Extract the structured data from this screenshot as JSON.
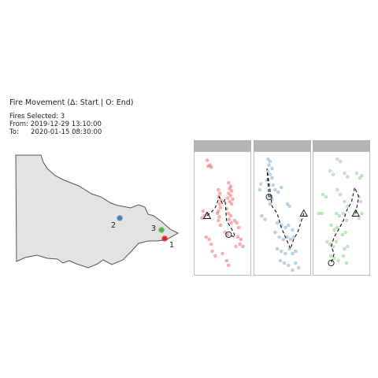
{
  "header": {
    "title": "Fire Movement (Δ: Start | O: End)",
    "selected": "Fires Selected: 3",
    "from": "From: 2019-12-29 13:10:00",
    "to_label": "To:",
    "to_value": "2020-01-15 08:30:00"
  },
  "colors": {
    "fire_1": "#e41a1c",
    "fire_2": "#377eb8",
    "fire_3": "#4daf4a",
    "map_fill": "#e3e3e3",
    "map_stroke": "#555555",
    "strip": "#b3b3b3"
  },
  "chart_data": [
    {
      "type": "scatter",
      "description_of_view": "map",
      "title": "",
      "fires": [
        {
          "label": "1",
          "color": "#e41a1c",
          "location": "far east, near coast"
        },
        {
          "label": "2",
          "color": "#377eb8",
          "location": "north-east"
        },
        {
          "label": "3",
          "color": "#4daf4a",
          "location": "far east"
        }
      ]
    },
    {
      "type": "scatter",
      "title": "",
      "xlabel": "",
      "ylabel": "",
      "grid": false,
      "facets": [
        {
          "fire": "1",
          "color": "#e41a1c",
          "points": [
            [
              0.2,
              0.05
            ],
            [
              0.26,
              0.09
            ],
            [
              0.22,
              0.1
            ],
            [
              0.28,
              0.11
            ],
            [
              0.62,
              0.24
            ],
            [
              0.66,
              0.27
            ],
            [
              0.64,
              0.29
            ],
            [
              0.68,
              0.31
            ],
            [
              0.62,
              0.33
            ],
            [
              0.66,
              0.35
            ],
            [
              0.6,
              0.37
            ],
            [
              0.7,
              0.38
            ],
            [
              0.64,
              0.4
            ],
            [
              0.68,
              0.42
            ],
            [
              0.42,
              0.3
            ],
            [
              0.45,
              0.33
            ],
            [
              0.43,
              0.36
            ],
            [
              0.47,
              0.39
            ],
            [
              0.44,
              0.42
            ],
            [
              0.46,
              0.45
            ],
            [
              0.42,
              0.48
            ],
            [
              0.12,
              0.48
            ],
            [
              0.2,
              0.5
            ],
            [
              0.15,
              0.52
            ],
            [
              0.1,
              0.54
            ],
            [
              0.58,
              0.46
            ],
            [
              0.62,
              0.5
            ],
            [
              0.66,
              0.52
            ],
            [
              0.63,
              0.55
            ],
            [
              0.67,
              0.58
            ],
            [
              0.4,
              0.5
            ],
            [
              0.44,
              0.53
            ],
            [
              0.42,
              0.56
            ],
            [
              0.46,
              0.6
            ],
            [
              0.74,
              0.56
            ],
            [
              0.78,
              0.58
            ],
            [
              0.82,
              0.62
            ],
            [
              0.55,
              0.66
            ],
            [
              0.6,
              0.68
            ],
            [
              0.8,
              0.7
            ],
            [
              0.86,
              0.72
            ],
            [
              0.84,
              0.76
            ],
            [
              0.9,
              0.78
            ],
            [
              0.76,
              0.78
            ],
            [
              0.18,
              0.7
            ],
            [
              0.24,
              0.72
            ],
            [
              0.28,
              0.76
            ],
            [
              0.3,
              0.82
            ],
            [
              0.36,
              0.86
            ],
            [
              0.5,
              0.84
            ],
            [
              0.58,
              0.9
            ],
            [
              0.62,
              0.94
            ]
          ],
          "path": [
            [
              0.2,
              0.52
            ],
            [
              0.35,
              0.46
            ],
            [
              0.44,
              0.36
            ],
            [
              0.5,
              0.42
            ],
            [
              0.55,
              0.38
            ],
            [
              0.58,
              0.56
            ],
            [
              0.66,
              0.62
            ],
            [
              0.72,
              0.66
            ],
            [
              0.74,
              0.7
            ],
            [
              0.62,
              0.68
            ]
          ],
          "start": [
            0.2,
            0.52
          ],
          "end": [
            0.62,
            0.68
          ]
        },
        {
          "fire": "2",
          "color": "#377eb8",
          "points": [
            [
              0.22,
              0.04
            ],
            [
              0.26,
              0.06
            ],
            [
              0.24,
              0.09
            ],
            [
              0.3,
              0.12
            ],
            [
              0.22,
              0.14
            ],
            [
              0.26,
              0.17
            ],
            [
              0.2,
              0.22
            ],
            [
              0.3,
              0.2
            ],
            [
              0.08,
              0.25
            ],
            [
              0.06,
              0.3
            ],
            [
              0.32,
              0.26
            ],
            [
              0.36,
              0.3
            ],
            [
              0.42,
              0.32
            ],
            [
              0.48,
              0.28
            ],
            [
              0.24,
              0.36
            ],
            [
              0.3,
              0.38
            ],
            [
              0.26,
              0.42
            ],
            [
              0.6,
              0.42
            ],
            [
              0.64,
              0.44
            ],
            [
              0.1,
              0.52
            ],
            [
              0.16,
              0.55
            ],
            [
              0.4,
              0.58
            ],
            [
              0.48,
              0.6
            ],
            [
              0.56,
              0.62
            ],
            [
              0.62,
              0.6
            ],
            [
              0.7,
              0.64
            ],
            [
              0.36,
              0.66
            ],
            [
              0.44,
              0.7
            ],
            [
              0.52,
              0.72
            ],
            [
              0.6,
              0.7
            ],
            [
              0.66,
              0.72
            ],
            [
              0.72,
              0.7
            ],
            [
              0.4,
              0.8
            ],
            [
              0.48,
              0.82
            ],
            [
              0.56,
              0.84
            ],
            [
              0.64,
              0.8
            ],
            [
              0.7,
              0.84
            ],
            [
              0.76,
              0.82
            ],
            [
              0.46,
              0.9
            ],
            [
              0.54,
              0.92
            ],
            [
              0.62,
              0.94
            ],
            [
              0.76,
              0.92
            ],
            [
              0.82,
              0.96
            ],
            [
              0.7,
              0.98
            ]
          ],
          "path": [
            [
              0.92,
              0.5
            ],
            [
              0.8,
              0.66
            ],
            [
              0.72,
              0.72
            ],
            [
              0.66,
              0.8
            ],
            [
              0.6,
              0.74
            ],
            [
              0.48,
              0.62
            ],
            [
              0.4,
              0.5
            ],
            [
              0.3,
              0.44
            ],
            [
              0.26,
              0.3
            ],
            [
              0.2,
              0.12
            ],
            [
              0.24,
              0.36
            ]
          ],
          "start": [
            0.92,
            0.5
          ],
          "end": [
            0.24,
            0.36
          ]
        },
        {
          "fire": "3",
          "color": "#4daf4a",
          "points": [
            [
              0.42,
              0.04
            ],
            [
              0.48,
              0.06
            ],
            [
              0.28,
              0.14
            ],
            [
              0.34,
              0.17
            ],
            [
              0.56,
              0.16
            ],
            [
              0.62,
              0.19
            ],
            [
              0.8,
              0.16
            ],
            [
              0.86,
              0.2
            ],
            [
              0.9,
              0.18
            ],
            [
              0.42,
              0.3
            ],
            [
              0.48,
              0.34
            ],
            [
              0.14,
              0.34
            ],
            [
              0.2,
              0.36
            ],
            [
              0.56,
              0.4
            ],
            [
              0.62,
              0.44
            ],
            [
              0.84,
              0.36
            ],
            [
              0.88,
              0.4
            ],
            [
              0.06,
              0.5
            ],
            [
              0.12,
              0.5
            ],
            [
              0.4,
              0.5
            ],
            [
              0.46,
              0.52
            ],
            [
              0.54,
              0.5
            ],
            [
              0.6,
              0.56
            ],
            [
              0.76,
              0.5
            ],
            [
              0.84,
              0.54
            ],
            [
              0.9,
              0.5
            ],
            [
              0.3,
              0.6
            ],
            [
              0.36,
              0.64
            ],
            [
              0.42,
              0.62
            ],
            [
              0.52,
              0.68
            ],
            [
              0.58,
              0.66
            ],
            [
              0.22,
              0.74
            ],
            [
              0.28,
              0.76
            ],
            [
              0.34,
              0.78
            ],
            [
              0.4,
              0.74
            ],
            [
              0.56,
              0.8
            ],
            [
              0.62,
              0.78
            ],
            [
              0.3,
              0.86
            ],
            [
              0.36,
              0.88
            ],
            [
              0.44,
              0.9
            ],
            [
              0.54,
              0.86
            ],
            [
              0.6,
              0.92
            ]
          ],
          "path": [
            [
              0.78,
              0.5
            ],
            [
              0.84,
              0.36
            ],
            [
              0.76,
              0.28
            ],
            [
              0.7,
              0.4
            ],
            [
              0.6,
              0.48
            ],
            [
              0.54,
              0.56
            ],
            [
              0.44,
              0.64
            ],
            [
              0.36,
              0.7
            ],
            [
              0.3,
              0.78
            ],
            [
              0.36,
              0.84
            ],
            [
              0.3,
              0.92
            ]
          ],
          "start": [
            0.78,
            0.5
          ],
          "end": [
            0.3,
            0.92
          ]
        }
      ]
    }
  ]
}
